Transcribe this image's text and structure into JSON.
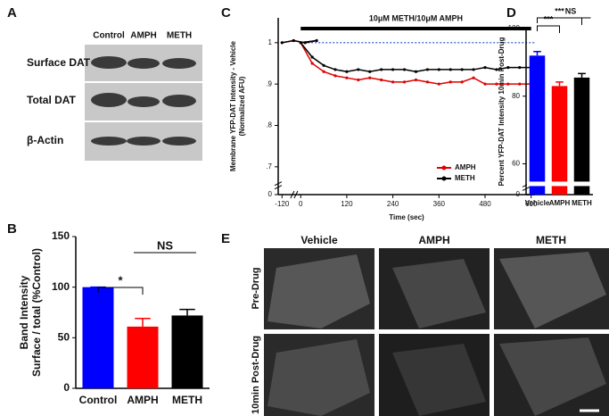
{
  "panels": [
    "A",
    "B",
    "C",
    "D",
    "E"
  ],
  "blot": {
    "columns": [
      "Control",
      "AMPH",
      "METH"
    ],
    "rows": [
      "Surface DAT",
      "Total DAT",
      "β-Actin"
    ]
  },
  "micrographs": {
    "columns": [
      "Vehicle",
      "AMPH",
      "METH"
    ],
    "rows": [
      "Pre-Drug",
      "10min Post-Drug"
    ]
  },
  "chart_data": [
    {
      "type": "bar",
      "categories": [
        "Control",
        "AMPH",
        "METH"
      ],
      "values": [
        100,
        61,
        72
      ],
      "errors": [
        0,
        8,
        6
      ],
      "colors": [
        "#0000ff",
        "#ff0000",
        "#000000"
      ],
      "ylim": [
        0,
        150
      ],
      "yticks": [
        0,
        50,
        100,
        150
      ],
      "ylabel": [
        "Band Intensity",
        "Surface / total (%Control)"
      ],
      "brackets": [
        {
          "text": "*",
          "between": [
            "Control",
            "AMPH"
          ]
        },
        {
          "text": "NS",
          "between": [
            "AMPH",
            "METH"
          ]
        }
      ]
    },
    {
      "type": "line",
      "x": [
        -120,
        -90,
        -60,
        -30,
        0,
        30,
        60,
        90,
        120,
        150,
        180,
        210,
        240,
        270,
        300,
        330,
        360,
        390,
        420,
        450,
        480,
        510,
        540,
        570,
        600
      ],
      "series": [
        {
          "name": "AMPH",
          "color": "#e00000",
          "values": [
            1,
            1.005,
            1,
            1.005,
            1,
            0.95,
            0.93,
            0.92,
            0.915,
            0.91,
            0.915,
            0.91,
            0.905,
            0.905,
            0.91,
            0.905,
            0.9,
            0.905,
            0.905,
            0.915,
            0.9,
            0.9,
            0.9,
            0.9,
            0.9
          ]
        },
        {
          "name": "METH",
          "color": "#000000",
          "values": [
            1,
            1.005,
            1,
            1.005,
            1,
            0.965,
            0.945,
            0.935,
            0.93,
            0.935,
            0.93,
            0.935,
            0.935,
            0.935,
            0.93,
            0.935,
            0.935,
            0.935,
            0.935,
            0.935,
            0.94,
            0.935,
            0.94,
            0.94,
            0.94
          ]
        }
      ],
      "reference_line": {
        "value": 1,
        "color": "#1f4fbf"
      },
      "treatment_bar": {
        "label": "10μM METH/10μM AMPH",
        "x": [
          0,
          600
        ]
      },
      "xlim": [
        -130,
        610
      ],
      "xbreak": [
        -100,
        -10
      ],
      "xticks": [
        -120,
        0,
        120,
        240,
        360,
        480,
        600
      ],
      "ylim": [
        0,
        1.06
      ],
      "ybreak": [
        0.02,
        0.67
      ],
      "yticks": [
        0,
        {
          "value": 0.7,
          "label": ".7"
        },
        {
          "value": 0.8,
          "label": ".8"
        },
        {
          "value": 0.9,
          "label": ".9"
        },
        1
      ],
      "xlabel": "Time (sec)",
      "ylabel": [
        "Membrane YFP-DAT Intensity - Vehicle",
        "(Normalized AFU)"
      ],
      "legend": "lower-right"
    },
    {
      "type": "bar",
      "categories": [
        "Vehicle",
        "AMPH",
        "METH"
      ],
      "values": [
        92,
        83,
        85.5
      ],
      "errors": [
        1.2,
        1.2,
        1.2
      ],
      "colors": [
        "#0000ff",
        "#ff0000",
        "#000000"
      ],
      "ylim": [
        0,
        100
      ],
      "ybreak": [
        2,
        55
      ],
      "yticks": [
        0,
        60,
        80,
        100
      ],
      "ylabel": [
        "Percent YFP-DAT Intensity 10min Post-Drug"
      ],
      "brackets": [
        {
          "text": "***",
          "between": [
            "Vehicle",
            "AMPH"
          ]
        },
        {
          "text": "***",
          "between": [
            "Vehicle",
            "METH"
          ]
        },
        {
          "text": "NS",
          "between": [
            "AMPH",
            "METH"
          ]
        }
      ]
    }
  ]
}
